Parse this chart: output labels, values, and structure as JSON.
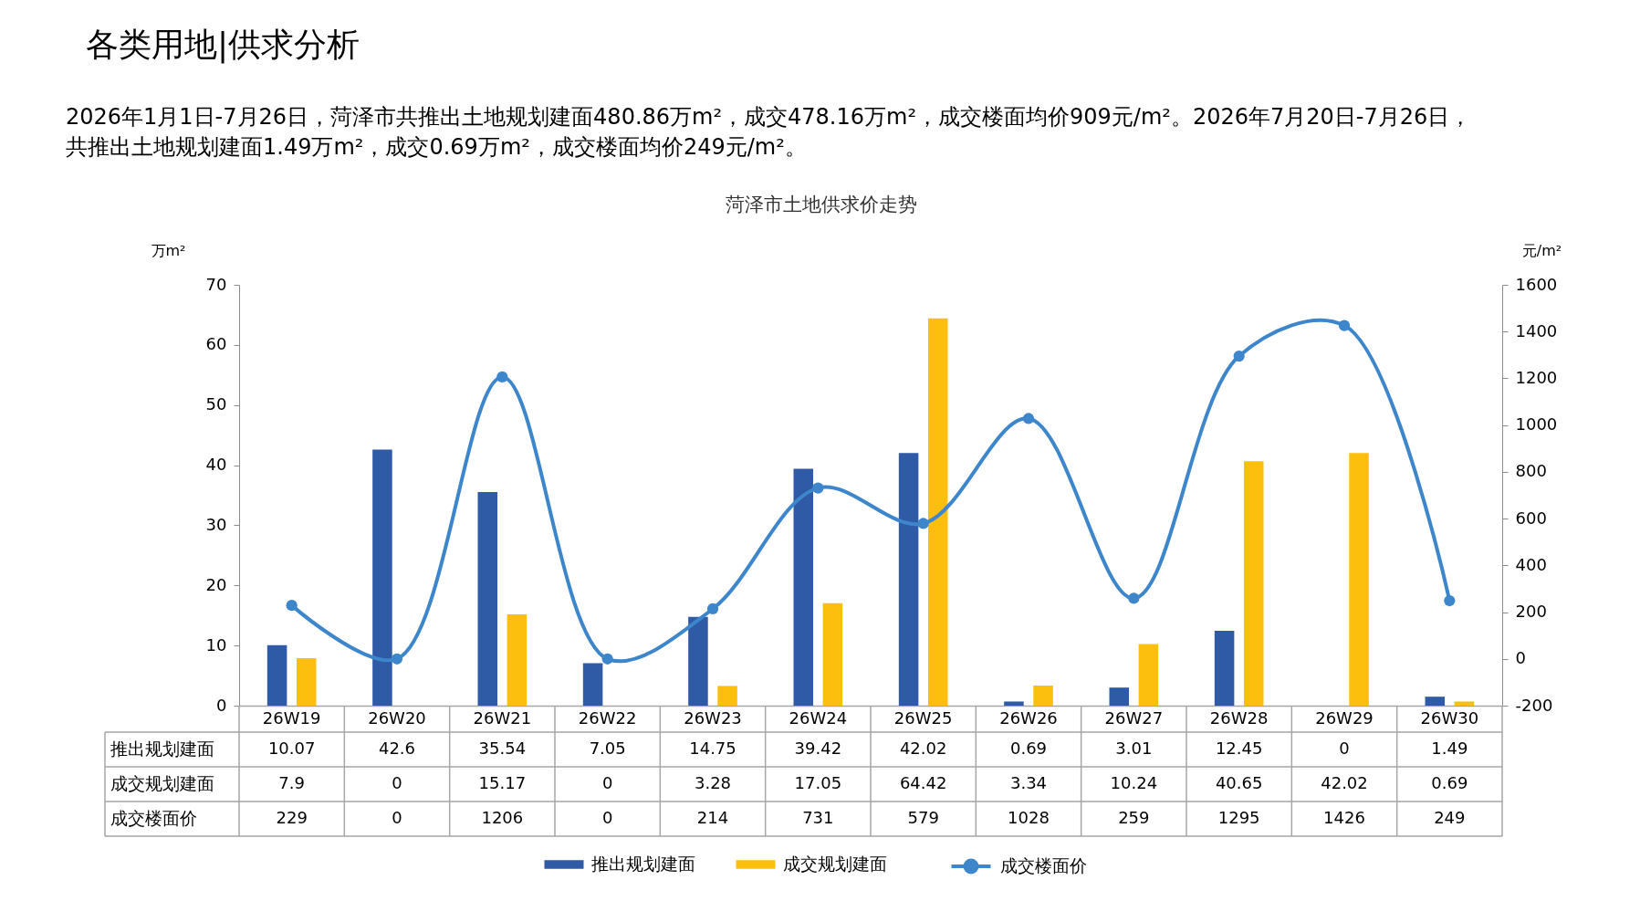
{
  "chart_data": {
    "type": "bar",
    "title": "菏泽市土地供求价走势",
    "annotations": [
      "各类用地|供求分析",
      "2026年1月1日-7月26日，菏泽市共推出土地规划建面480.86万m²，成交478.16万m²，成交楼面均价909元/m²。2026年7月20日-7月26日，共推出土地规划建面1.49万m²，成交0.69万m²，成交楼面均价249元/m²。"
    ],
    "ylabel": "万m²",
    "y2label": "元/m²",
    "categories": [
      "26W19",
      "26W20",
      "26W21",
      "26W22",
      "26W23",
      "26W24",
      "26W25",
      "26W26",
      "26W27",
      "26W28",
      "26W29",
      "26W30"
    ],
    "series": [
      {
        "name": "推出规划建面",
        "color": "#2f5aa6",
        "values": [
          10.07,
          42.6,
          35.54,
          7.05,
          14.75,
          39.42,
          42.02,
          0.69,
          3.01,
          12.45,
          0,
          1.49
        ]
      },
      {
        "name": "成交规划建面",
        "color": "#fcbf0e",
        "values": [
          7.9,
          0,
          15.17,
          0,
          3.28,
          17.05,
          64.42,
          3.34,
          10.24,
          40.65,
          42.02,
          0.69
        ]
      },
      {
        "name": "成交楼面价",
        "type": "line",
        "axis": "y2",
        "color": "#3d86cc",
        "values": [
          229,
          0,
          1206,
          0,
          214,
          731,
          579,
          1028,
          259,
          1295,
          1426,
          249
        ]
      }
    ],
    "ylim": [
      0,
      70
    ],
    "yticks": [
      0,
      10,
      20,
      30,
      40,
      50,
      60,
      70
    ],
    "y2lim": [
      -200,
      1600
    ],
    "y2ticks": [
      -200,
      0,
      200,
      400,
      600,
      800,
      1000,
      1200,
      1400,
      1600
    ],
    "grid": false,
    "legend": "bottom",
    "data_labels": true,
    "marker": "circle",
    "line_style": "solid"
  }
}
